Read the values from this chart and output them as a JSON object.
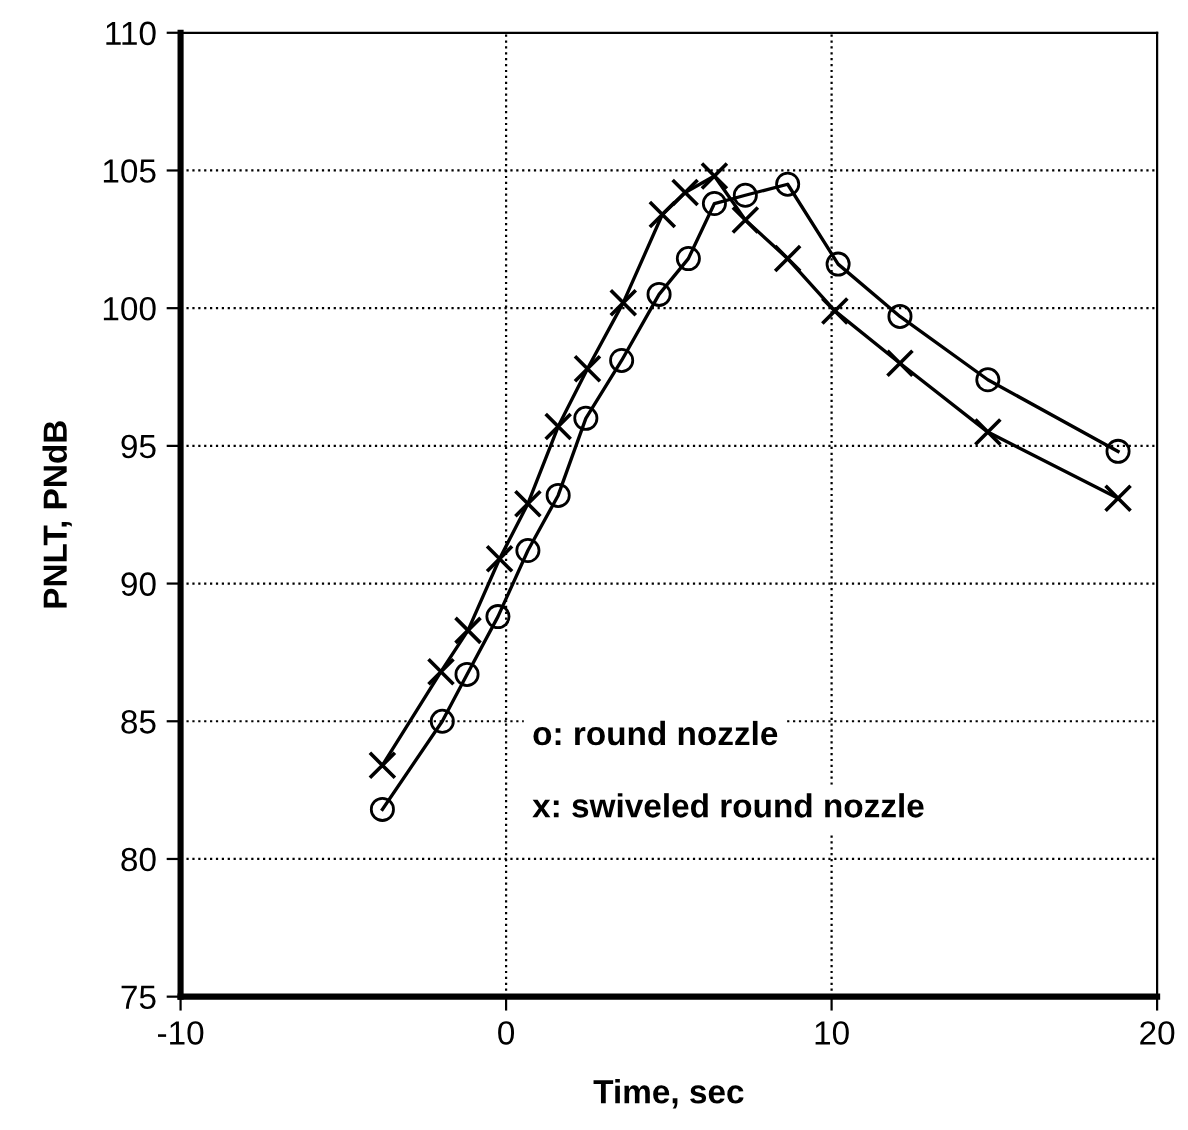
{
  "chart_data": {
    "type": "line",
    "xlabel": "Time, sec",
    "ylabel": "PNLT, PNdB",
    "xlim": [
      -10,
      20
    ],
    "xticks": [
      -10,
      0,
      10,
      20
    ],
    "ylim": [
      75,
      110
    ],
    "yticks": [
      75,
      80,
      85,
      90,
      95,
      100,
      105,
      110
    ],
    "grid": true,
    "line_style": "solid",
    "series": [
      {
        "color": "#000000",
        "marker": "circle",
        "x": [
          -3.8,
          -1.96,
          -1.2,
          -0.25,
          0.67,
          1.6,
          2.45,
          3.55,
          4.7,
          5.6,
          6.4,
          7.35,
          8.65,
          10.2,
          12.1,
          14.8,
          18.8
        ],
        "values": [
          81.8,
          85.0,
          86.7,
          88.8,
          91.2,
          93.2,
          96.0,
          98.1,
          100.5,
          101.8,
          103.8,
          104.1,
          104.5,
          101.6,
          99.7,
          97.4,
          94.8
        ]
      },
      {
        "color": "#000000",
        "marker": "cross",
        "x": [
          -3.8,
          -2.0,
          -1.17,
          -0.2,
          0.67,
          1.6,
          2.5,
          3.6,
          4.8,
          5.5,
          6.4,
          7.35,
          8.65,
          10.1,
          12.1,
          14.8,
          18.8
        ],
        "values": [
          83.4,
          86.8,
          88.3,
          90.9,
          92.9,
          95.7,
          97.8,
          100.2,
          103.4,
          104.2,
          104.8,
          103.2,
          101.8,
          99.9,
          98.0,
          95.5,
          93.1
        ]
      }
    ],
    "annotations": [
      "o: round nozzle",
      "x: swiveled round nozzle"
    ]
  }
}
